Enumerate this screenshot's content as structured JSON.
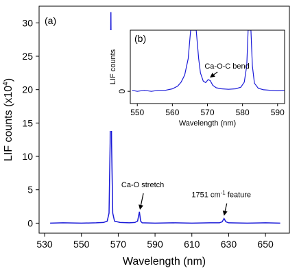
{
  "chart_data": [
    {
      "id": "main",
      "type": "line",
      "panel_label": "(a)",
      "xlabel": "Wavelength (nm)",
      "ylabel": "LIF counts (x10",
      "ylabel_sup": "4",
      "ylabel_tail": ")",
      "xlim": [
        527,
        663
      ],
      "ylim": [
        -1.5,
        32.5
      ],
      "xticks": [
        530,
        550,
        570,
        590,
        610,
        630,
        650
      ],
      "yticks": [
        0,
        5,
        10,
        15,
        20,
        25,
        30
      ],
      "series": [
        {
          "color": "#1a1ad8",
          "points": [
            [
              533,
              0
            ],
            [
              540,
              0.05
            ],
            [
              550,
              0
            ],
            [
              558,
              0.05
            ],
            [
              562,
              0.1
            ],
            [
              564,
              0.3
            ],
            [
              565,
              1.5
            ],
            [
              565.6,
              12
            ],
            [
              566,
              31.6
            ],
            [
              566.4,
              12
            ],
            [
              567,
              1.5
            ],
            [
              568,
              0.3
            ],
            [
              571,
              0.1
            ],
            [
              576,
              0.05
            ],
            [
              579,
              0.1
            ],
            [
              580.5,
              0.3
            ],
            [
              581.5,
              1.7
            ],
            [
              582.2,
              0.3
            ],
            [
              583,
              0.05
            ],
            [
              590,
              0
            ],
            [
              600,
              0.05
            ],
            [
              610,
              0
            ],
            [
              620,
              0.05
            ],
            [
              625,
              0.05
            ],
            [
              626.5,
              0.2
            ],
            [
              627.5,
              0.7
            ],
            [
              628.5,
              0.2
            ],
            [
              630,
              0.05
            ],
            [
              640,
              0
            ],
            [
              650,
              0.05
            ],
            [
              658,
              0
            ]
          ]
        }
      ],
      "annotations": [
        {
          "text": "Ca-O stretch",
          "x": 581.8,
          "y": 1.7
        },
        {
          "text": "1751 cm",
          "sup": "-1",
          "tail": " feature",
          "x": 627.5,
          "y": 0.7
        }
      ]
    },
    {
      "id": "inset",
      "type": "line",
      "panel_label": "(b)",
      "xlabel": "Wavelength (nm)",
      "ylabel": "LIF counts",
      "xlim": [
        548,
        592
      ],
      "ylim": [
        -1.2,
        6
      ],
      "xticks": [
        550,
        560,
        570,
        580,
        590
      ],
      "yticks": [
        0
      ],
      "series": [
        {
          "color": "#1a1ad8",
          "points": [
            [
              548.5,
              0.1
            ],
            [
              550,
              0
            ],
            [
              552,
              0.1
            ],
            [
              554,
              0
            ],
            [
              556,
              0.1
            ],
            [
              558,
              0.1
            ],
            [
              560,
              0.25
            ],
            [
              561.5,
              0.5
            ],
            [
              562.5,
              0.9
            ],
            [
              563.5,
              1.6
            ],
            [
              564.5,
              3.2
            ],
            [
              565.2,
              6
            ],
            [
              566.8,
              6
            ],
            [
              567.5,
              3.2
            ],
            [
              568,
              1.8
            ],
            [
              568.8,
              1.0
            ],
            [
              569.5,
              0.85
            ],
            [
              570.2,
              1.15
            ],
            [
              570.8,
              1.05
            ],
            [
              571.5,
              0.6
            ],
            [
              572.5,
              0.35
            ],
            [
              574,
              0.25
            ],
            [
              576,
              0.2
            ],
            [
              578,
              0.25
            ],
            [
              579.5,
              0.4
            ],
            [
              580.5,
              0.9
            ],
            [
              581.2,
              2.5
            ],
            [
              581.6,
              6
            ],
            [
              582.4,
              6
            ],
            [
              582.8,
              2.5
            ],
            [
              583.4,
              0.8
            ],
            [
              584.5,
              0.3
            ],
            [
              586,
              0.15
            ],
            [
              588,
              0.1
            ],
            [
              590,
              0.05
            ],
            [
              592,
              0.1
            ]
          ]
        }
      ],
      "annotations": [
        {
          "text": "Ca-O-C bend",
          "x": 570.5,
          "y": 1.15
        }
      ]
    }
  ]
}
